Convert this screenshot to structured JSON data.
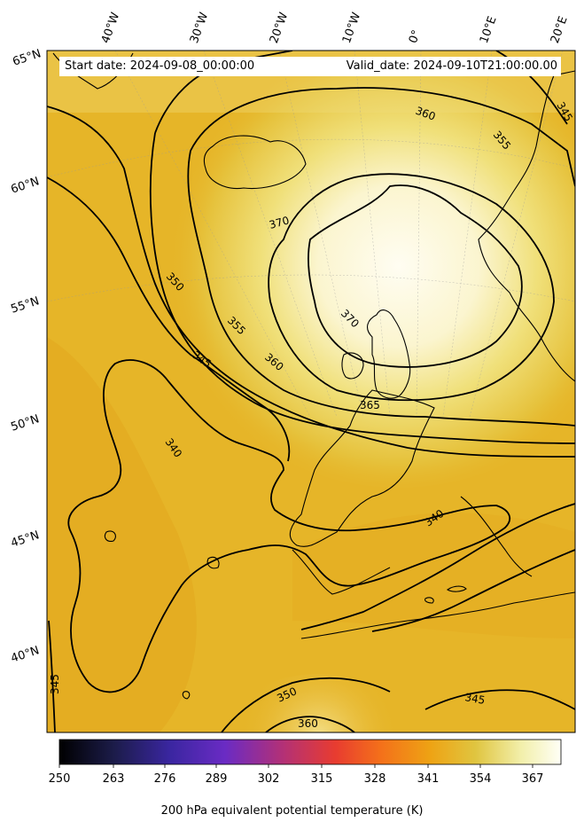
{
  "map": {
    "start_label": "Start date: 2024-09-08_00:00:00",
    "valid_label": "Valid_date: 2024-09-10T21:00:00.00",
    "lon_labels": [
      "40°W",
      "30°W",
      "20°W",
      "10°W",
      "0°",
      "10°E",
      "20°E"
    ],
    "lat_labels": [
      "65°N",
      "60°N",
      "55°N",
      "50°N",
      "45°N",
      "40°N"
    ],
    "contour_labels": [
      "345",
      "350",
      "355",
      "360",
      "365",
      "370",
      "340",
      "345",
      "350",
      "355",
      "360",
      "345",
      "340",
      "350",
      "360",
      "345"
    ],
    "colors": {
      "background_field": "#e6b528",
      "warm_core": "#fffbe8",
      "contour_line": "#000000"
    }
  },
  "colorbar": {
    "title": "200 hPa equivalent potential temperature (K)",
    "ticks": [
      "250",
      "263",
      "276",
      "289",
      "302",
      "315",
      "328",
      "341",
      "354",
      "367"
    ],
    "range": [
      250,
      370
    ],
    "colormap": [
      "#000000",
      "#1c1c4a",
      "#3a26a0",
      "#6a2bc4",
      "#b0307a",
      "#e83c30",
      "#f4701a",
      "#eea314",
      "#e0c540",
      "#f2efaa",
      "#fffff6"
    ]
  }
}
